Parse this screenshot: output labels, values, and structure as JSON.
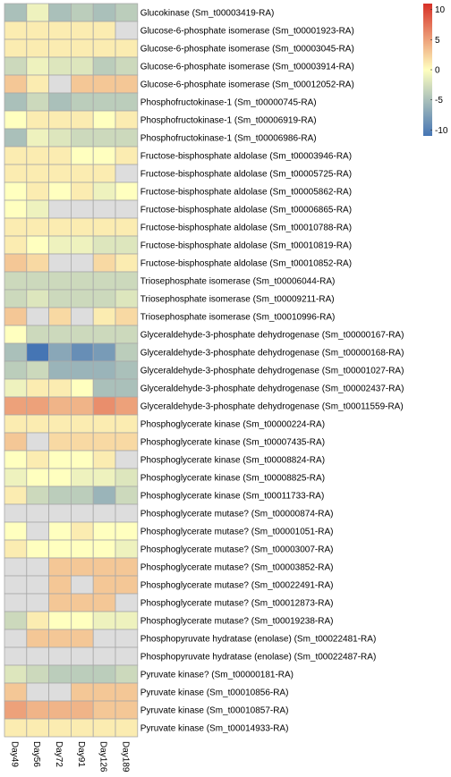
{
  "chart_data": {
    "type": "heatmap",
    "title": "",
    "xlabel": "",
    "ylabel": "",
    "columns": [
      "Day49",
      "Day56",
      "Day72",
      "Day91",
      "Day126",
      "Day189"
    ],
    "rows": [
      "Glucokinase (Sm_t00003419-RA)",
      "Glucose-6-phosphate isomerase (Sm_t00001923-RA)",
      "Glucose-6-phosphate isomerase (Sm_t00003045-RA)",
      "Glucose-6-phosphate isomerase (Sm_t00003914-RA)",
      "Glucose-6-phosphate isomerase (Sm_t00012052-RA)",
      "Phosphofructokinase-1 (Sm_t00000745-RA)",
      "Phosphofructokinase-1 (Sm_t00006919-RA)",
      "Phosphofructokinase-1 (Sm_t00006986-RA)",
      "Fructose-bisphosphate aldolase (Sm_t00003946-RA)",
      "Fructose-bisphosphate aldolase (Sm_t00005725-RA)",
      "Fructose-bisphosphate aldolase (Sm_t00005862-RA)",
      "Fructose-bisphosphate aldolase (Sm_t00006865-RA)",
      "Fructose-bisphosphate aldolase (Sm_t00010788-RA)",
      "Fructose-bisphosphate aldolase (Sm_t00010819-RA)",
      "Fructose-bisphosphate aldolase (Sm_t00010852-RA)",
      "Triosephosphate isomerase (Sm_t00006044-RA)",
      "Triosephosphate isomerase (Sm_t00009211-RA)",
      "Triosephosphate isomerase (Sm_t00010996-RA)",
      "Glyceraldehyde-3-phosphate dehydrogenase (Sm_t00000167-RA)",
      "Glyceraldehyde-3-phosphate dehydrogenase (Sm_t00000168-RA)",
      "Glyceraldehyde-3-phosphate dehydrogenase (Sm_t00001027-RA)",
      "Glyceraldehyde-3-phosphate dehydrogenase (Sm_t00002437-RA)",
      "Glyceraldehyde-3-phosphate dehydrogenase (Sm_t00011559-RA)",
      "Phosphoglycerate kinase (Sm_t00000224-RA)",
      "Phosphoglycerate kinase (Sm_t00007435-RA)",
      "Phosphoglycerate kinase (Sm_t00008824-RA)",
      "Phosphoglycerate kinase (Sm_t00008825-RA)",
      "Phosphoglycerate kinase (Sm_t00011733-RA)",
      "Phosphoglycerate mutase? (Sm_t00000874-RA)",
      "Phosphoglycerate mutase? (Sm_t00001051-RA)",
      "Phosphoglycerate mutase? (Sm_t00003007-RA)",
      "Phosphoglycerate mutase? (Sm_t00003852-RA)",
      "Phosphoglycerate mutase? (Sm_t00022491-RA)",
      "Phosphoglycerate mutase? (Sm_t00012873-RA)",
      "Phosphoglycerate mutase? (Sm_t00019238-RA)",
      "Phosphopyruvate hydratase (enolase) (Sm_t00022481-RA)",
      "Phosphopyruvate hydratase (enolase) (Sm_t00022487-RA)",
      "Pyruvate kinase? (Sm_t00000181-RA)",
      "Pyruvate kinase (Sm_t00010856-RA)",
      "Pyruvate kinase (Sm_t00010857-RA)",
      "Pyruvate kinase (Sm_t00014933-RA)"
    ],
    "values": [
      [
        -5,
        -1,
        -5,
        -4,
        -5,
        -4
      ],
      [
        1,
        1,
        1,
        1,
        1,
        null
      ],
      [
        1,
        1,
        1,
        1,
        1,
        1
      ],
      [
        -3,
        -1,
        -2,
        -2,
        -4,
        -3
      ],
      [
        3,
        1,
        null,
        3,
        3,
        3
      ],
      [
        -5,
        -3,
        -5,
        -4,
        -4,
        -4
      ],
      [
        0,
        1,
        1,
        1,
        0,
        1
      ],
      [
        -5,
        -1,
        -2,
        -3,
        -3,
        -3
      ],
      [
        1,
        1,
        1,
        0,
        0,
        1
      ],
      [
        1,
        1,
        1,
        1,
        1,
        null
      ],
      [
        0,
        1,
        0,
        1,
        -1,
        0
      ],
      [
        0,
        -1,
        null,
        null,
        null,
        null
      ],
      [
        1,
        1,
        1,
        1,
        1,
        1
      ],
      [
        1,
        0,
        -1,
        -1,
        -2,
        -2
      ],
      [
        3,
        2,
        null,
        null,
        2,
        1
      ],
      [
        -3,
        -3,
        -3,
        -3,
        -3,
        -3
      ],
      [
        -3,
        -2,
        -3,
        -3,
        -3,
        -2
      ],
      [
        3,
        null,
        2,
        null,
        1,
        2
      ],
      [
        0,
        -3,
        -3,
        -3,
        -3,
        -3
      ],
      [
        -5,
        -11,
        -7,
        -9,
        -8,
        -4
      ],
      [
        -4,
        -3,
        -6,
        -6,
        -6,
        -5
      ],
      [
        -1,
        1,
        1,
        0,
        -5,
        -5
      ],
      [
        5,
        5,
        4,
        4,
        6,
        5
      ],
      [
        1,
        1,
        1,
        1,
        1,
        1
      ],
      [
        3,
        null,
        2,
        2,
        2,
        2
      ],
      [
        0,
        1,
        0,
        0,
        1,
        null
      ],
      [
        -1,
        0,
        0,
        -1,
        -1,
        -2
      ],
      [
        1,
        -3,
        -4,
        -4,
        -6,
        -3
      ],
      [
        null,
        null,
        null,
        null,
        null,
        null
      ],
      [
        0,
        null,
        0,
        1,
        0,
        0
      ],
      [
        1,
        0,
        0,
        0,
        0,
        -1
      ],
      [
        null,
        null,
        3,
        3,
        3,
        3
      ],
      [
        null,
        null,
        3,
        null,
        3,
        3
      ],
      [
        null,
        null,
        3,
        3,
        3,
        null
      ],
      [
        -3,
        1,
        0,
        0,
        -1,
        -1
      ],
      [
        null,
        3,
        3,
        3,
        null,
        null
      ],
      [
        null,
        null,
        null,
        null,
        null,
        null
      ],
      [
        -2,
        -3,
        -4,
        -4,
        -4,
        -3
      ],
      [
        3,
        null,
        null,
        3,
        3,
        3
      ],
      [
        5,
        4,
        4,
        4,
        3,
        3
      ],
      [
        1,
        1,
        1,
        1,
        1,
        1
      ]
    ],
    "color_scale": {
      "low": "#4575b4",
      "mid": "#ffffbf",
      "high": "#d73027",
      "missing": "#dddddd",
      "range": [
        -11,
        11
      ]
    },
    "legend": {
      "placement": "top-right",
      "ticks": [
        10,
        5,
        0,
        -5,
        -10
      ]
    }
  }
}
